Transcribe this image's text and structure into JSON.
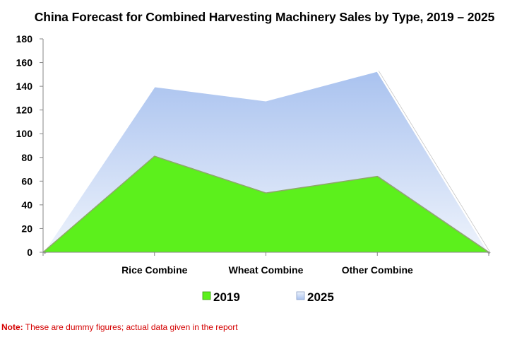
{
  "title": "China Forecast for Combined Harvesting Machinery Sales by Type, 2019 – 2025",
  "footnote": {
    "label": "Note:",
    "text": " These are dummy figures; actual data given in the report"
  },
  "colors": {
    "series_2019": "#5cf01c",
    "series_2025_top": "#a9c2ef",
    "series_2025_bottom": "#eef3fc"
  },
  "chart_data": {
    "type": "area",
    "title": "China Forecast for Combined Harvesting Machinery Sales by Type, 2019 – 2025",
    "categories": [
      "",
      "Rice Combine",
      "Wheat Combine",
      "Other Combine",
      ""
    ],
    "series": [
      {
        "name": "2019",
        "values": [
          0,
          81,
          50,
          64,
          0
        ]
      },
      {
        "name": "2025",
        "values": [
          0,
          140,
          128,
          153,
          0
        ]
      }
    ],
    "yticks": [
      0,
      20,
      40,
      60,
      80,
      100,
      120,
      140,
      160,
      180
    ],
    "ylim": [
      0,
      180
    ],
    "xlabel": "",
    "ylabel": "",
    "grid": false,
    "legend": "bottom-center"
  }
}
